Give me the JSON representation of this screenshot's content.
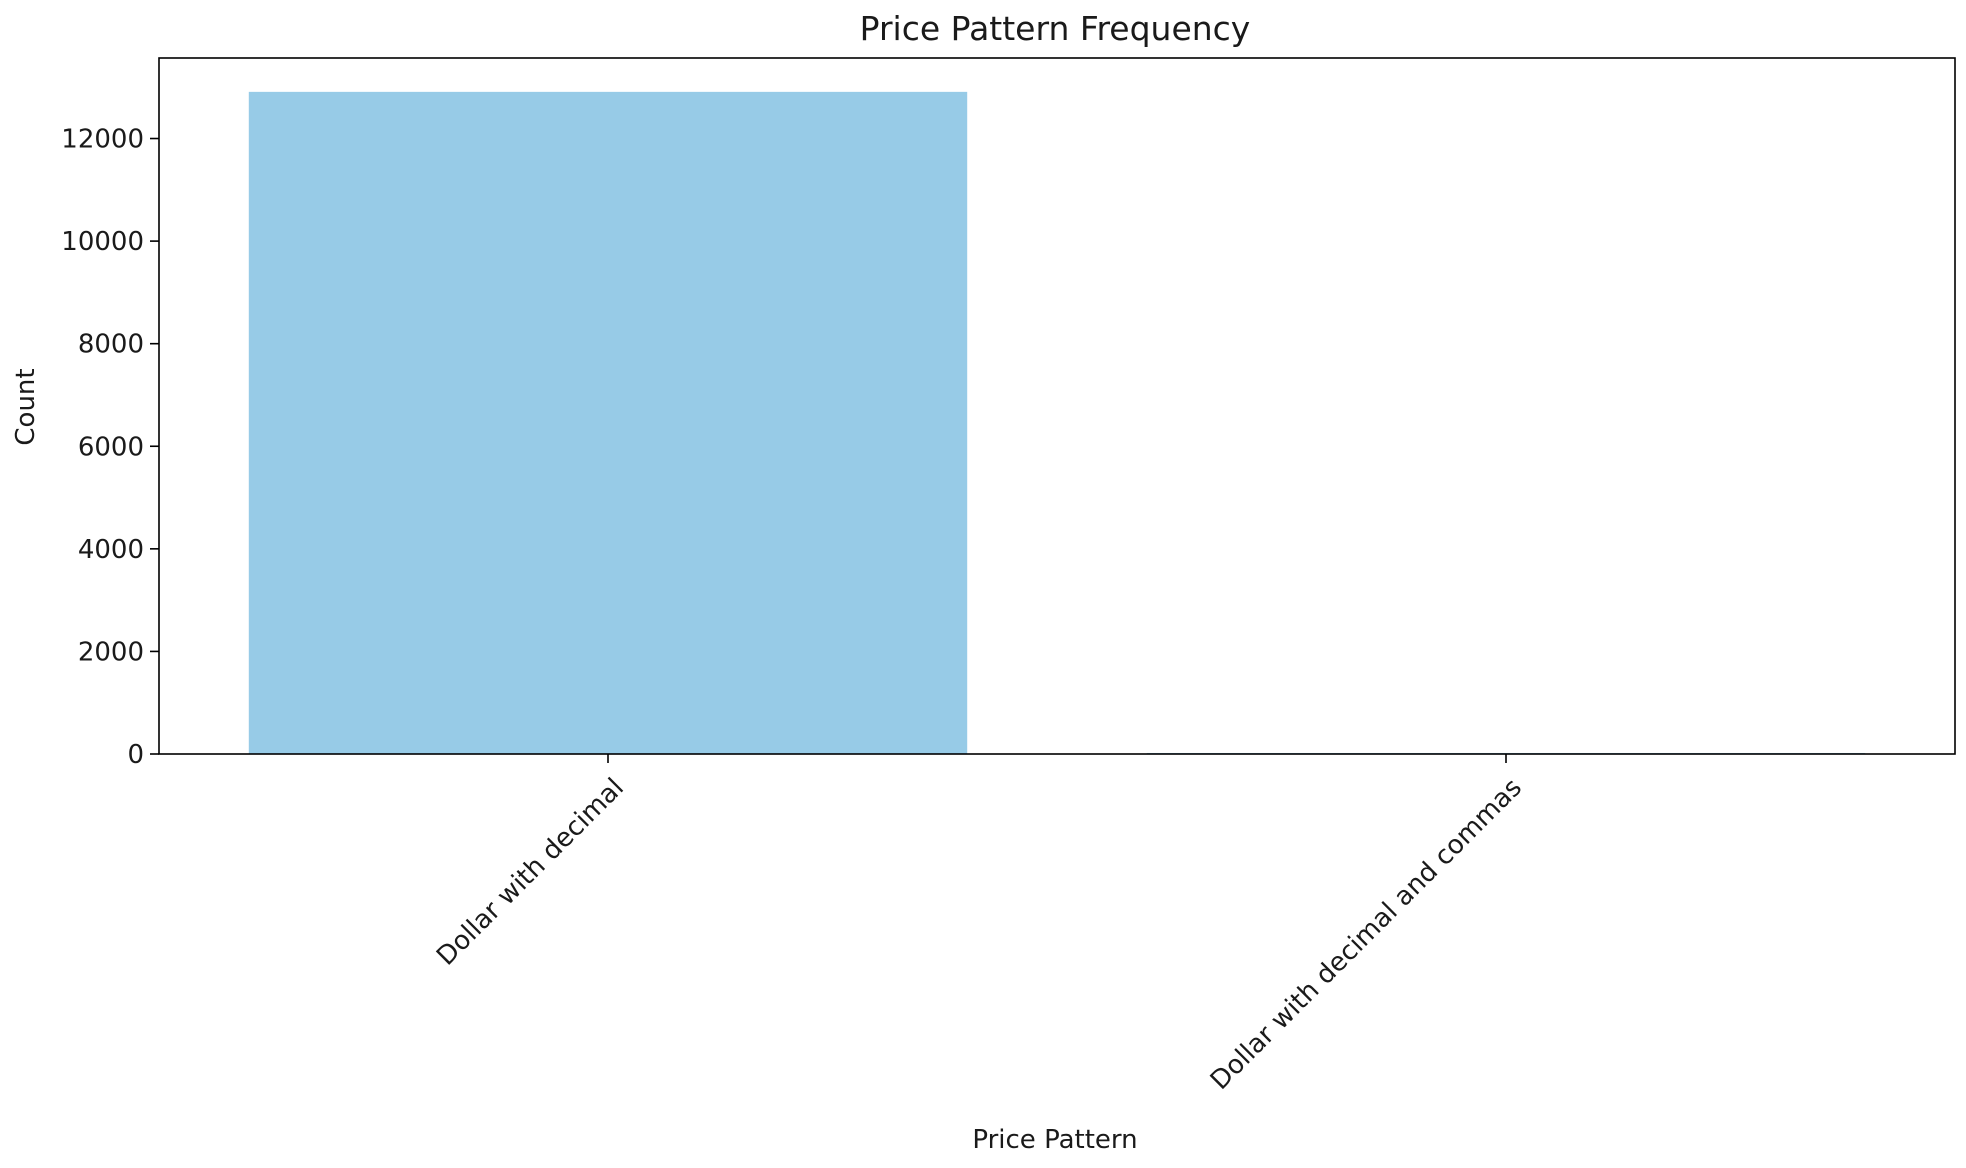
{
  "chart_data": {
    "type": "bar",
    "title": "Price Pattern Frequency",
    "xlabel": "Price Pattern",
    "ylabel": "Count",
    "categories": [
      "Dollar with decimal",
      "Dollar with decimal and commas"
    ],
    "values": [
      12910,
      20
    ],
    "ylim": [
      0,
      13570
    ],
    "yticks": [
      0,
      2000,
      4000,
      6000,
      8000,
      10000,
      12000
    ],
    "ytick_labels": [
      "0",
      "2000",
      "4000",
      "6000",
      "8000",
      "10000",
      "12000"
    ],
    "bar_color": "#97cbe7",
    "grid": false,
    "legend": "none"
  }
}
